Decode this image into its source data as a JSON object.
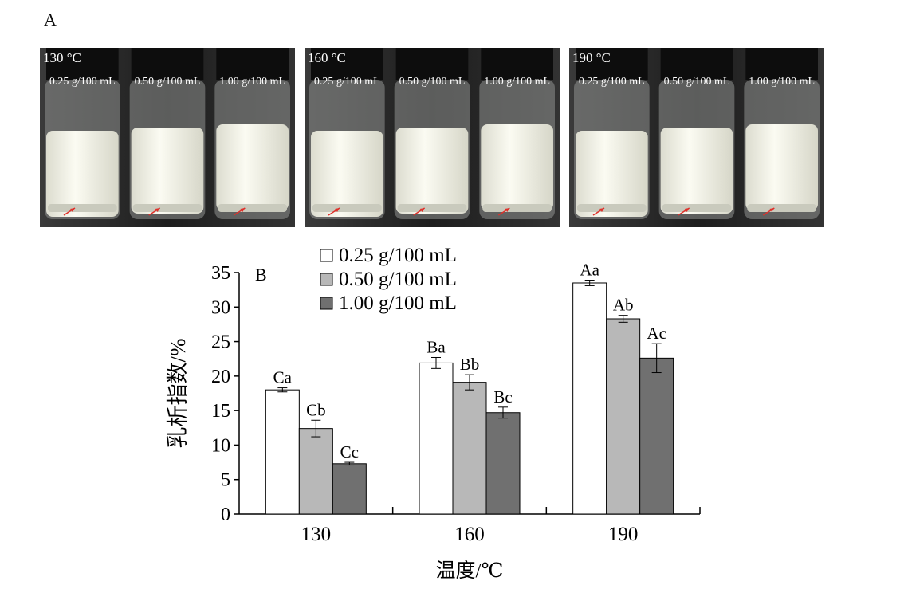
{
  "panel_a": {
    "label": "A",
    "photos": [
      {
        "temperature": "130 °C",
        "vials": [
          "0.25 g/100 mL",
          "0.50 g/100 mL",
          "1.00 g/100 mL"
        ]
      },
      {
        "temperature": "160 °C",
        "vials": [
          "0.25 g/100 mL",
          "0.50 g/100 mL",
          "1.00 g/100 mL"
        ]
      },
      {
        "temperature": "190 °C",
        "vials": [
          "0.25 g/100 mL",
          "0.50 g/100 mL",
          "1.00 g/100 mL"
        ]
      }
    ]
  },
  "chart_data": {
    "type": "bar",
    "panel_label": "B",
    "xlabel": "温度/℃",
    "ylabel": "乳析指数/%",
    "categories": [
      "130",
      "160",
      "190"
    ],
    "ylim": [
      0,
      35
    ],
    "yticks": [
      0,
      5,
      10,
      15,
      20,
      25,
      30,
      35
    ],
    "series": [
      {
        "name": "0.25 g/100 mL",
        "color": "#ffffff",
        "values": [
          18.0,
          21.9,
          33.5
        ],
        "errors": [
          0.3,
          0.8,
          0.4
        ],
        "labels": [
          "Ca",
          "Ba",
          "Aa"
        ]
      },
      {
        "name": "0.50 g/100 mL",
        "color": "#b8b8b8",
        "values": [
          12.4,
          19.1,
          28.3
        ],
        "errors": [
          1.2,
          1.1,
          0.5
        ],
        "labels": [
          "Cb",
          "Bb",
          "Ab"
        ]
      },
      {
        "name": "1.00 g/100 mL",
        "color": "#707070",
        "values": [
          7.3,
          14.7,
          22.6
        ],
        "errors": [
          0.2,
          0.8,
          2.1
        ],
        "labels": [
          "Cc",
          "Bc",
          "Ac"
        ]
      }
    ],
    "legend_position": "top-left",
    "grid": false
  }
}
